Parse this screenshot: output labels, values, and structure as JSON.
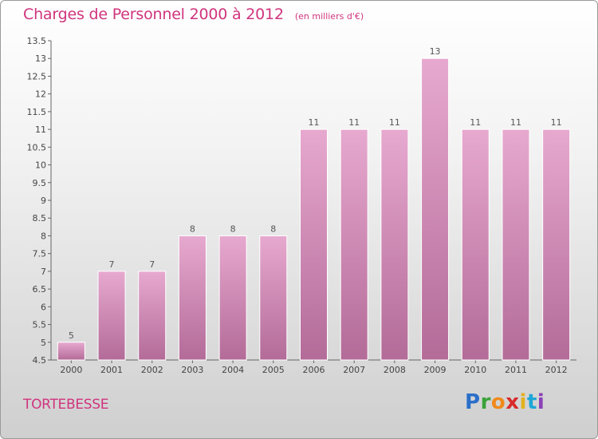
{
  "header": {
    "title": "Charges de Personnel 2000 à 2012",
    "unit_note": "(en milliers d'€)"
  },
  "footer": {
    "place": "TORTEBESSE",
    "brand_letters": [
      "P",
      "r",
      "o",
      "x",
      "i",
      "t",
      "i"
    ],
    "brand_colors": [
      "#2a6fc9",
      "#3aa33a",
      "#f08a1c",
      "#d82b2b",
      "#e2b11c",
      "#1ea7d6",
      "#8a3fb8"
    ]
  },
  "chart_data": {
    "type": "bar",
    "title": "Charges de Personnel 2000 à 2012",
    "subtitle": "(en milliers d'€)",
    "categories": [
      "2000",
      "2001",
      "2002",
      "2003",
      "2004",
      "2005",
      "2006",
      "2007",
      "2008",
      "2009",
      "2010",
      "2011",
      "2012"
    ],
    "values": [
      5,
      7,
      7,
      8,
      8,
      8,
      11,
      11,
      11,
      13,
      11,
      11,
      11
    ],
    "data_labels": [
      "5",
      "7",
      "7",
      "8",
      "8",
      "8",
      "11",
      "11",
      "11",
      "13",
      "11",
      "11",
      "11"
    ],
    "y_ticks": [
      "4.5",
      "5",
      "5.5",
      "6",
      "6.5",
      "7",
      "7.5",
      "8",
      "8.5",
      "9",
      "9.5",
      "10",
      "10.5",
      "11",
      "11.5",
      "12",
      "12.5",
      "13",
      "13.5"
    ],
    "ylim": [
      4.5,
      13.5
    ],
    "grid": false,
    "bar_color": "#d98fbb",
    "bar_color_top": "#e7a9cf",
    "bar_color_bottom": "#b36b98"
  }
}
